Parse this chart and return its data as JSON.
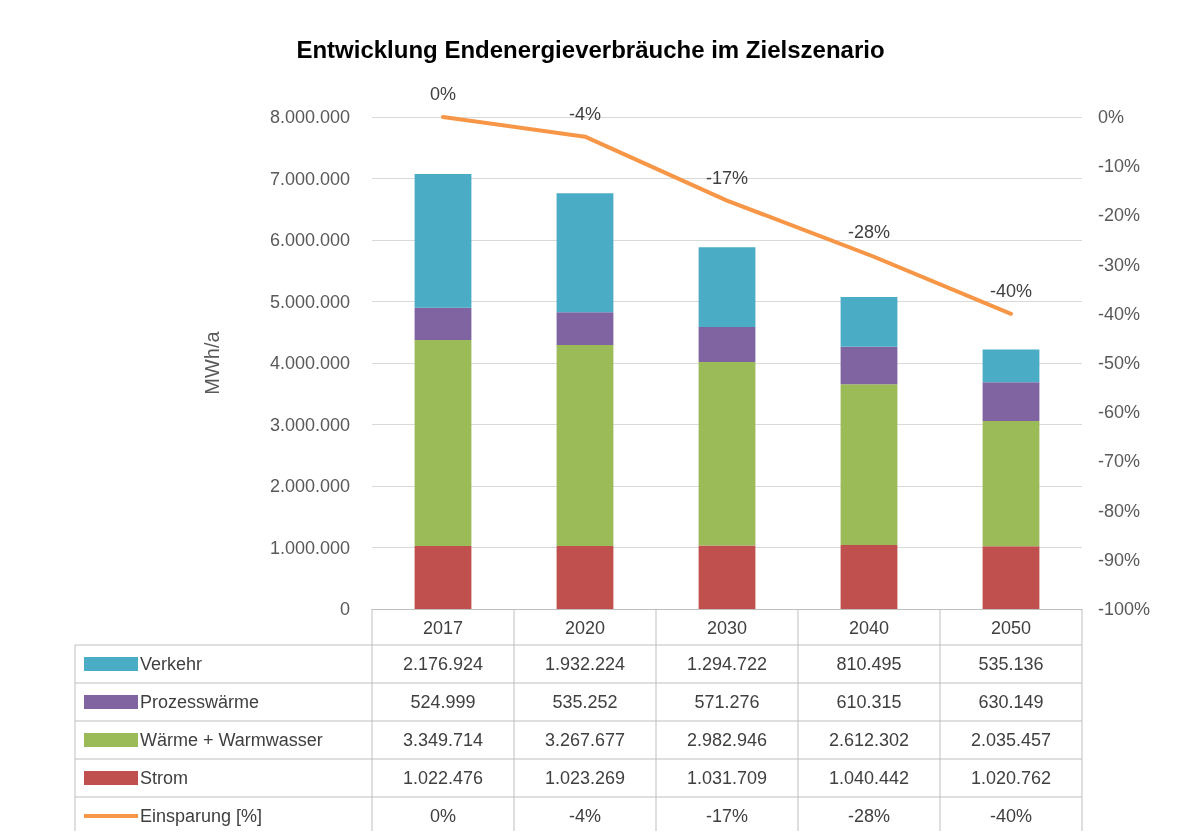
{
  "chart_data": {
    "type": "bar",
    "title": "Entwicklung Endenergieverbräuche im Zielszenario",
    "ylabel": "MWh/a",
    "categories": [
      "2017",
      "2020",
      "2030",
      "2040",
      "2050"
    ],
    "stacked": true,
    "series": [
      {
        "name": "Strom",
        "color": "#c0504d",
        "values": [
          1022476,
          1023269,
          1031709,
          1040442,
          1020762
        ],
        "value_labels": [
          "1.022.476",
          "1.023.269",
          "1.031.709",
          "1.040.442",
          "1.020.762"
        ]
      },
      {
        "name": "Wärme + Warmwasser",
        "color": "#9bbb59",
        "values": [
          3349714,
          3267677,
          2982946,
          2612302,
          2035457
        ],
        "value_labels": [
          "3.349.714",
          "3.267.677",
          "2.982.946",
          "2.612.302",
          "2.035.457"
        ]
      },
      {
        "name": "Prozesswärme",
        "color": "#8064a2",
        "values": [
          524999,
          535252,
          571276,
          610315,
          630149
        ],
        "value_labels": [
          "524.999",
          "535.252",
          "571.276",
          "610.315",
          "630.149"
        ]
      },
      {
        "name": "Verkehr",
        "color": "#4bacc6",
        "values": [
          2176924,
          1932224,
          1294722,
          810495,
          535136
        ],
        "value_labels": [
          "2.176.924",
          "1.932.224",
          "1.294.722",
          "810.495",
          "535.136"
        ]
      },
      {
        "name": "Einsparung [%]",
        "type": "line",
        "axis": "y2",
        "color": "#f79646",
        "values": [
          0,
          -4,
          -17,
          -28,
          -40
        ],
        "value_labels": [
          "0%",
          "-4%",
          "-17%",
          "-28%",
          "-40%"
        ]
      }
    ],
    "ylim": [
      0,
      8000000
    ],
    "yticks": [
      0,
      {
        "value": 1000000,
        "label": "1.000.000"
      },
      {
        "value": 2000000,
        "label": "2.000.000"
      },
      {
        "value": 3000000,
        "label": "3.000.000"
      },
      {
        "value": 4000000,
        "label": "4.000.000"
      },
      {
        "value": 5000000,
        "label": "5.000.000"
      },
      {
        "value": 6000000,
        "label": "6.000.000"
      },
      {
        "value": 7000000,
        "label": "7.000.000"
      },
      {
        "value": 8000000,
        "label": "8.000.000"
      }
    ],
    "y2lim": [
      -100,
      0
    ],
    "y2ticks": [
      {
        "value": -100,
        "label": "-100%"
      },
      {
        "value": -90,
        "label": "-90%"
      },
      {
        "value": -80,
        "label": "-80%"
      },
      {
        "value": -70,
        "label": "-70%"
      },
      {
        "value": -60,
        "label": "-60%"
      },
      {
        "value": -50,
        "label": "-50%"
      },
      {
        "value": -40,
        "label": "-40%"
      },
      {
        "value": -30,
        "label": "-30%"
      },
      {
        "value": -20,
        "label": "-20%"
      },
      {
        "value": -10,
        "label": "-10%"
      },
      {
        "value": 0,
        "label": "0%"
      }
    ],
    "grid": "y",
    "legend": "bottom",
    "marker": "none",
    "line_style": "solid"
  }
}
